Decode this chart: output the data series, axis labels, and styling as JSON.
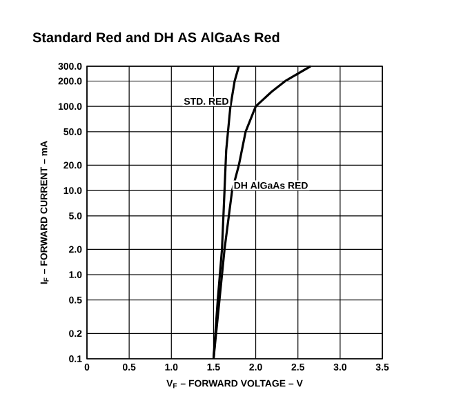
{
  "chart_data": {
    "type": "line",
    "title": "Standard Red and DH AS AlGaAs Red",
    "xlabel": "V$_{F}$ – FORWARD VOLTAGE – V",
    "ylabel": "I$_{F}$ – FORWARD CURRENT – mA",
    "log": "y",
    "grid": true,
    "marker": "none",
    "line_style": "solid",
    "xlim": [
      0,
      3.5
    ],
    "ylim": [
      0.1,
      300
    ],
    "xticks": [
      0,
      0.5,
      {
        "value": 1,
        "label": "1.0"
      },
      1.5,
      {
        "value": 2,
        "label": "2.0"
      },
      2.5,
      {
        "value": 3,
        "label": "3.0"
      },
      3.5
    ],
    "yticks": [
      0.1,
      0.2,
      0.5,
      {
        "value": 1,
        "label": "1.0"
      },
      {
        "value": 2,
        "label": "2.0"
      },
      {
        "value": 5,
        "label": "5.0"
      },
      {
        "value": 10,
        "label": "10.0"
      },
      {
        "value": 20,
        "label": "20.0"
      },
      {
        "value": 50,
        "label": "50.0"
      },
      {
        "value": 100,
        "label": "100.0"
      },
      {
        "value": 200,
        "label": "200.0"
      },
      {
        "value": 300,
        "label": "300.0"
      }
    ],
    "series": [
      {
        "name": "STD. RED",
        "color": "#000000",
        "x": [
          1.5,
          1.55,
          1.6,
          1.63,
          1.65,
          1.7,
          1.75,
          1.8
        ],
        "values": [
          0.1,
          0.5,
          2,
          10,
          30,
          100,
          200,
          300
        ]
      },
      {
        "name": "DH AlGaAs RED",
        "color": "#000000",
        "x": [
          1.5,
          1.57,
          1.63,
          1.72,
          1.8,
          1.88,
          2.0,
          2.19,
          2.35,
          2.65
        ],
        "values": [
          0.1,
          0.5,
          2,
          10,
          20,
          50,
          100,
          150,
          200,
          300
        ]
      }
    ]
  }
}
